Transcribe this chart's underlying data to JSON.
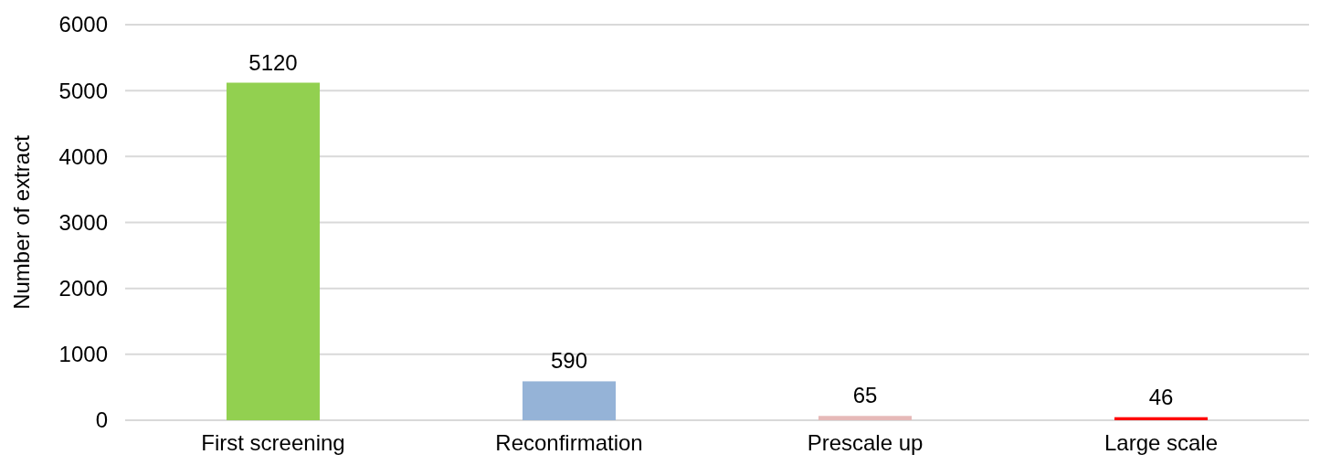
{
  "chart_data": {
    "type": "bar",
    "ylabel": "Number of extract",
    "categories": [
      "First screening",
      "Reconfirmation",
      "Prescale up",
      "Large scale"
    ],
    "values": [
      5120,
      590,
      65,
      46
    ],
    "colors": [
      "#92d050",
      "#95b3d7",
      "#e6b9b8",
      "#ff0000"
    ],
    "ylim": [
      0,
      6000
    ],
    "yticks": [
      0,
      1000,
      2000,
      3000,
      4000,
      5000,
      6000
    ],
    "grid": "y",
    "data_labels": true
  }
}
